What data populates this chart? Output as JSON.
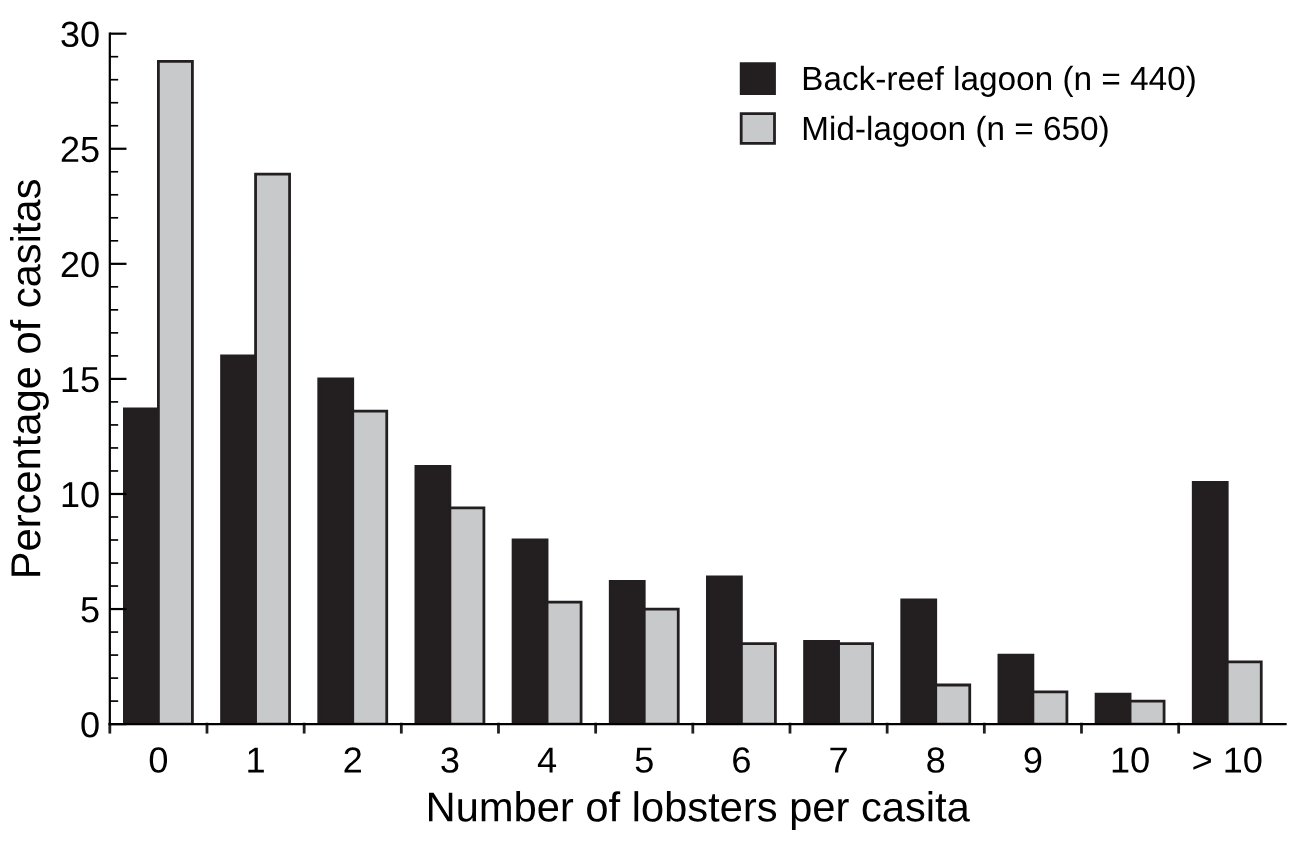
{
  "chart_data": {
    "type": "bar",
    "xlabel": "Number of lobsters per casita",
    "ylabel": "Percentage of casitas",
    "categories": [
      "0",
      "1",
      "2",
      "3",
      "4",
      "5",
      "6",
      "7",
      "8",
      "9",
      "10",
      "> 10"
    ],
    "series": [
      {
        "name": "Back-reef lagoon (n = 440)",
        "color": "#231f20",
        "values": [
          13.7,
          16,
          15,
          11.2,
          8,
          6.2,
          6.4,
          3.6,
          5.4,
          3,
          1.3,
          10.5
        ]
      },
      {
        "name": "Mid-lagoon (n = 650)",
        "color": "#c8c9cb",
        "values": [
          28.8,
          23.9,
          13.6,
          9.4,
          5.3,
          5.0,
          3.5,
          3.5,
          1.7,
          1.4,
          1.0,
          2.7
        ]
      }
    ],
    "ylim": [
      0,
      30
    ],
    "yticks": [
      0,
      {
        "value": 1,
        "label": null
      },
      {
        "value": 2,
        "label": null
      },
      {
        "value": 3,
        "label": null
      },
      {
        "value": 4,
        "label": null
      },
      5,
      {
        "value": 6,
        "label": null
      },
      {
        "value": 7,
        "label": null
      },
      {
        "value": 8,
        "label": null
      },
      {
        "value": 9,
        "label": null
      },
      10,
      {
        "value": 11,
        "label": null
      },
      {
        "value": 12,
        "label": null
      },
      {
        "value": 13,
        "label": null
      },
      {
        "value": 14,
        "label": null
      },
      15,
      {
        "value": 16,
        "label": null
      },
      {
        "value": 17,
        "label": null
      },
      {
        "value": 18,
        "label": null
      },
      {
        "value": 19,
        "label": null
      },
      20,
      {
        "value": 21,
        "label": null
      },
      {
        "value": 22,
        "label": null
      },
      {
        "value": 23,
        "label": null
      },
      {
        "value": 24,
        "label": null
      },
      25,
      {
        "value": 26,
        "label": null
      },
      {
        "value": 27,
        "label": null
      },
      {
        "value": 28,
        "label": null
      },
      {
        "value": 29,
        "label": null
      },
      30
    ],
    "grid": false,
    "legend": "top right"
  }
}
